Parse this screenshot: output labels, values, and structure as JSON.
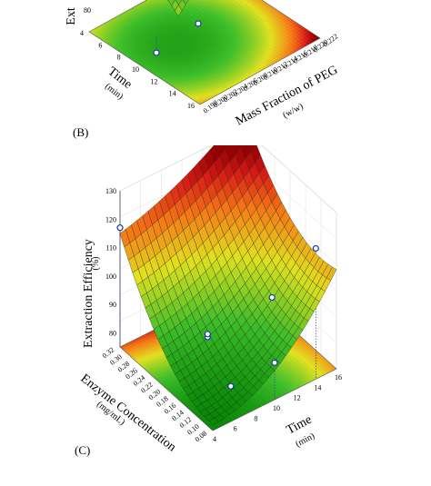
{
  "chart_data": [
    {
      "type": "surface3d",
      "panel_label": "(B)",
      "zlabel": "Ext",
      "xlabel": "Time",
      "xunit": "(min)",
      "ylabel": "Mass Fraction of PEG",
      "yunit": "(w/w)",
      "x_ticks": [
        "4",
        "6",
        "8",
        "10",
        "12",
        "14",
        "16"
      ],
      "y_ticks": [
        "0.198",
        "0.200",
        "0.202",
        "0.204",
        "0.206",
        "0.208",
        "0.210",
        "0.212",
        "0.214",
        "0.216",
        "0.218",
        "0.220",
        "0.222"
      ],
      "z_ticks": [
        "80"
      ],
      "xlim": [
        4,
        16
      ],
      "ylim": [
        0.198,
        0.222
      ],
      "points": [
        {
          "x": 12,
          "y": 0.198,
          "z": 80
        },
        {
          "x": 12,
          "y": 0.216,
          "z": 78
        }
      ]
    },
    {
      "type": "surface3d",
      "panel_label": "(C)",
      "zlabel": "Extraction Efficiency",
      "zunit": "(%)",
      "xlabel": "Enzyme Concentration",
      "xunit": "(mg/mL)",
      "ylabel": "Time",
      "yunit": "(min)",
      "x_ticks": [
        "0.32",
        "0.30",
        "0.28",
        "0.26",
        "0.24",
        "0.22",
        "0.20",
        "0.18",
        "0.16",
        "0.14",
        "0.12",
        "0.10",
        "0.08"
      ],
      "y_ticks": [
        "4",
        "6",
        "8",
        "10",
        "12",
        "14",
        "16"
      ],
      "z_ticks": [
        "80",
        "90",
        "100",
        "110",
        "120",
        "130"
      ],
      "xlim": [
        0.08,
        0.32
      ],
      "ylim": [
        4,
        16
      ],
      "zlim": [
        75,
        130
      ],
      "points": [
        {
          "x": 0.32,
          "y": 4,
          "z": 117
        },
        {
          "x": 0.2,
          "y": 8,
          "z": 86
        },
        {
          "x": 0.2,
          "y": 8,
          "z": 87
        },
        {
          "x": 0.14,
          "y": 12,
          "z": 100
        },
        {
          "x": 0.08,
          "y": 14,
          "z": 121
        },
        {
          "x": 0.08,
          "y": 10,
          "z": 88
        },
        {
          "x": 0.14,
          "y": 8,
          "z": 76
        }
      ]
    }
  ]
}
